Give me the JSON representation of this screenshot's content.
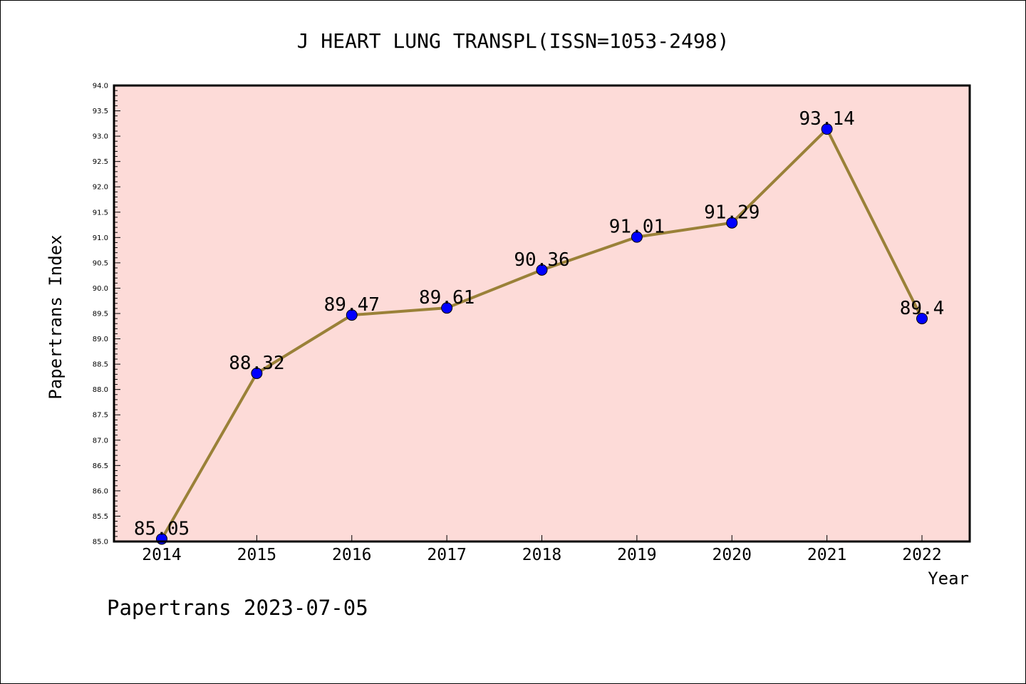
{
  "chart_data": {
    "type": "line",
    "title": "J HEART LUNG TRANSPL(ISSN=1053-2498)",
    "xlabel": "Year",
    "ylabel": "Papertrans Index",
    "footer": "Papertrans 2023-07-05",
    "x": [
      "2014",
      "2015",
      "2016",
      "2017",
      "2018",
      "2019",
      "2020",
      "2021",
      "2022"
    ],
    "values": [
      85.05,
      88.32,
      89.47,
      89.61,
      90.36,
      91.01,
      91.29,
      93.14,
      89.4
    ],
    "data_labels": [
      "85.05",
      "88.32",
      "89.47",
      "89.61",
      "90.36",
      "91.01",
      "91.29",
      "93.14",
      "89.4"
    ],
    "ylim": [
      85.0,
      94.0
    ],
    "yticks": [
      "85.0",
      "85.5",
      "86.0",
      "86.5",
      "87.0",
      "87.5",
      "88.0",
      "88.5",
      "89.0",
      "89.5",
      "90.0",
      "90.5",
      "91.0",
      "91.5",
      "92.0",
      "92.5",
      "93.0",
      "93.5",
      "94.0"
    ],
    "grid": false,
    "colors": {
      "plot_background": "#fddbd8",
      "line": "#9a8138",
      "marker": "#0000ff"
    }
  }
}
